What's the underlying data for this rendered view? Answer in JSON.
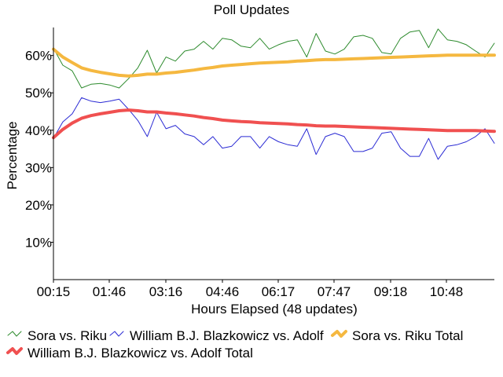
{
  "chart_data": {
    "type": "line",
    "title": "Poll Updates",
    "xlabel": "Hours Elapsed (48 updates)",
    "ylabel": "Percentage",
    "x_tick_labels": [
      "00:15",
      "01:46",
      "03:16",
      "04:46",
      "06:17",
      "07:47",
      "09:18",
      "10:48"
    ],
    "y_tick_labels": [
      "10%",
      "20%",
      "30%",
      "40%",
      "50%",
      "60%"
    ],
    "y_ticks": [
      10,
      20,
      30,
      40,
      50,
      60
    ],
    "ylim": [
      0,
      67.5
    ],
    "n_updates": 48,
    "grid": false,
    "legend_position": "bottom",
    "series": [
      {
        "name": "Sora vs. Riku",
        "color": "#2e8b2e",
        "width": 1,
        "values": [
          62.0,
          57.4,
          55.9,
          51.3,
          52.3,
          52.5,
          52.1,
          51.3,
          53.8,
          56.7,
          61.4,
          55.3,
          59.6,
          58.5,
          61.2,
          61.7,
          63.8,
          61.7,
          64.6,
          64.2,
          62.5,
          62.1,
          64.6,
          61.7,
          62.9,
          63.8,
          64.2,
          59.6,
          65.9,
          61.2,
          60.4,
          61.7,
          65.0,
          65.4,
          64.6,
          60.8,
          60.4,
          64.6,
          66.3,
          66.7,
          62.1,
          67.1,
          64.2,
          63.8,
          62.9,
          61.2,
          59.6,
          63.3
        ]
      },
      {
        "name": "William B.J. Blazkowicz vs. Adolf",
        "color": "#2b2bd4",
        "width": 1,
        "values": [
          37.8,
          42.2,
          44.4,
          48.7,
          47.8,
          47.4,
          47.8,
          48.3,
          45.6,
          42.6,
          38.3,
          44.8,
          40.4,
          41.3,
          39.0,
          38.3,
          36.1,
          38.3,
          35.2,
          35.7,
          38.3,
          38.3,
          35.2,
          38.3,
          36.9,
          36.1,
          35.7,
          40.4,
          33.5,
          38.3,
          39.2,
          38.3,
          34.3,
          34.3,
          35.2,
          39.2,
          39.6,
          35.2,
          33.0,
          33.0,
          37.8,
          32.2,
          35.7,
          36.1,
          36.9,
          38.3,
          40.4,
          36.5
        ]
      },
      {
        "name": "Sora vs. Riku Total",
        "color": "#f5b840",
        "width": 4,
        "values": [
          61.7,
          59.6,
          58.1,
          56.7,
          56.0,
          55.5,
          55.1,
          54.7,
          54.5,
          54.7,
          55.0,
          55.0,
          55.3,
          55.5,
          55.8,
          56.1,
          56.5,
          56.8,
          57.2,
          57.4,
          57.6,
          57.8,
          58.0,
          58.1,
          58.2,
          58.3,
          58.5,
          58.6,
          58.8,
          58.9,
          58.9,
          59.0,
          59.1,
          59.2,
          59.3,
          59.4,
          59.5,
          59.6,
          59.7,
          59.8,
          59.9,
          60.0,
          60.1,
          60.1,
          60.1,
          60.1,
          60.1,
          60.1
        ]
      },
      {
        "name": "William B.J. Blazkowicz vs. Adolf Total",
        "color": "#f05050",
        "width": 4,
        "values": [
          38.0,
          40.2,
          41.9,
          43.2,
          43.9,
          44.4,
          44.8,
          45.2,
          45.4,
          45.2,
          44.9,
          44.9,
          44.6,
          44.4,
          44.1,
          43.8,
          43.4,
          43.1,
          42.7,
          42.5,
          42.3,
          42.2,
          42.0,
          41.9,
          41.8,
          41.7,
          41.5,
          41.4,
          41.2,
          41.1,
          41.1,
          41.0,
          40.9,
          40.8,
          40.7,
          40.6,
          40.5,
          40.4,
          40.3,
          40.2,
          40.1,
          40.0,
          39.9,
          39.9,
          39.9,
          39.9,
          39.8,
          39.7
        ]
      }
    ]
  }
}
